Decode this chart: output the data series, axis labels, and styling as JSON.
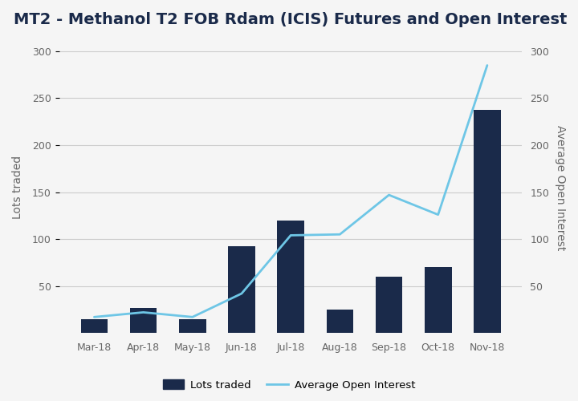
{
  "title": "MT2 - Methanol T2 FOB Rdam (ICIS) Futures and Open Interest",
  "categories": [
    "Mar-18",
    "Apr-18",
    "May-18",
    "Jun-18",
    "Jul-18",
    "Aug-18",
    "Sep-18",
    "Oct-18",
    "Nov-18"
  ],
  "lots_traded": [
    15,
    27,
    15,
    92,
    120,
    25,
    60,
    70,
    238
  ],
  "avg_open_interest": [
    17,
    22,
    17,
    42,
    104,
    105,
    147,
    126,
    285
  ],
  "bar_color": "#1a2a4a",
  "line_color": "#6ec6e6",
  "ylabel_left": "Lots traded",
  "ylabel_right": "Average Open Interest",
  "ylim": [
    0,
    310
  ],
  "yticks": [
    50,
    100,
    150,
    200,
    250,
    300
  ],
  "legend_lots": "Lots traded",
  "legend_oi": "Average Open Interest",
  "background_color": "#f5f5f5",
  "plot_bg_color": "#f5f5f5",
  "grid_color": "#cccccc",
  "title_fontsize": 14,
  "axis_fontsize": 10,
  "tick_fontsize": 9,
  "label_color": "#666666"
}
